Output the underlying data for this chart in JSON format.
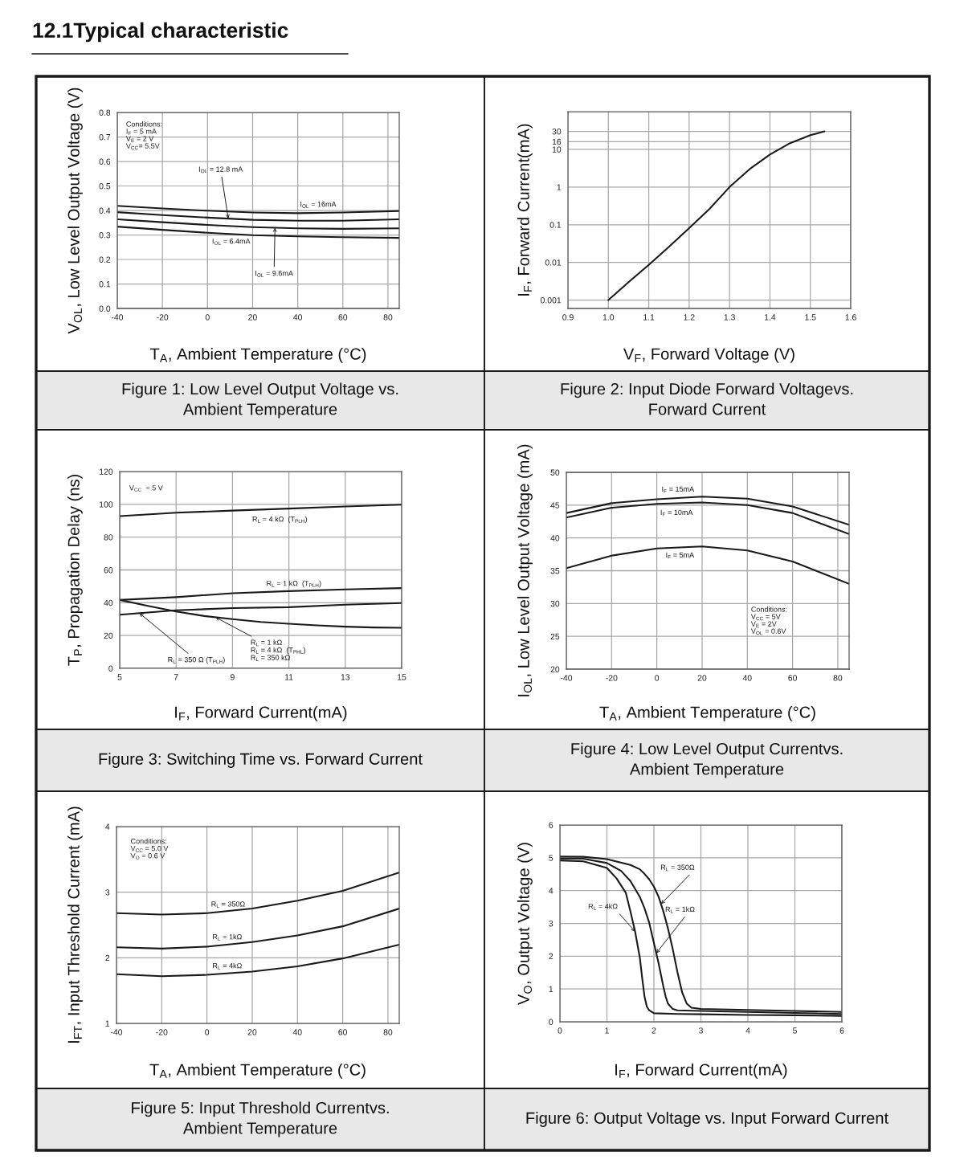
{
  "chart_data": [
    {
      "type": "other",
      "title": "12.1Typical characteristic"
    },
    {
      "type": "line",
      "title": "Figure 1: Low Level Output Voltage vs.\nAmbient Temperature",
      "xlabel": "T$_{A}$, Ambient Temperature (°C)",
      "ylabel": "V$_{OL}$, Low Level Output Voltage (V)",
      "xlim": [
        -40,
        85
      ],
      "ylim": [
        0,
        0.8
      ],
      "xticks": [
        -40,
        -20,
        0,
        20,
        40,
        60,
        80
      ],
      "yticks": [
        {
          "value": 0,
          "label": "0.0"
        },
        0.1,
        0.2,
        0.3,
        0.4,
        0.5,
        0.6,
        0.7,
        0.8
      ],
      "grid": true,
      "annotations": [
        "Conditions:\nI$_{F}$ = 5 mA\nV$_{E}$ = 2 V\nV$_{CC}$= 5.5V"
      ],
      "series": [
        {
          "name": "I$_{OL}$ = 16mA",
          "color": "#1a1a1a",
          "x": [
            -40,
            -20,
            0,
            20,
            40,
            60,
            85
          ],
          "values": [
            0.419,
            0.408,
            0.399,
            0.392,
            0.389,
            0.392,
            0.398
          ]
        },
        {
          "name": "I$_{OL}$ = 12.8 mA",
          "color": "#1a1a1a",
          "x": [
            -40,
            -20,
            0,
            20,
            40,
            60,
            85
          ],
          "values": [
            0.393,
            0.381,
            0.371,
            0.362,
            0.358,
            0.358,
            0.364
          ]
        },
        {
          "name": "I$_{OL}$ = 9.6mA",
          "color": "#1a1a1a",
          "x": [
            -40,
            -20,
            0,
            20,
            40,
            60,
            85
          ],
          "values": [
            0.364,
            0.352,
            0.341,
            0.332,
            0.327,
            0.325,
            0.327
          ]
        },
        {
          "name": "I$_{OL}$ = 6.4mA",
          "color": "#1a1a1a",
          "x": [
            -40,
            -20,
            0,
            20,
            40,
            60,
            85
          ],
          "values": [
            0.334,
            0.321,
            0.309,
            0.299,
            0.294,
            0.291,
            0.288
          ]
        }
      ]
    },
    {
      "type": "line",
      "title": "Figure 2: Input Diode Forward Voltagevs.\nForward Current",
      "xlabel": "V$_{F}$, Forward Voltage (V)",
      "ylabel": "I$_{F}$, Forward Current(mA)",
      "log": "y",
      "xlim": [
        0.9,
        1.6
      ],
      "ylim": [
        0.0006,
        100
      ],
      "xticks": [
        0.9,
        {
          "value": 1,
          "label": "1.0"
        },
        1.1,
        1.2,
        1.3,
        1.4,
        1.5,
        1.6
      ],
      "yticks": [
        0.001,
        0.01,
        0.1,
        1,
        10,
        16,
        30
      ],
      "grid": true,
      "series": [
        {
          "color": "#1a1a1a",
          "x": [
            1.0,
            1.05,
            1.1,
            1.15,
            1.2,
            1.25,
            1.3,
            1.35,
            1.4,
            1.45,
            1.5,
            1.535
          ],
          "values": [
            0.001,
            0.003,
            0.0086,
            0.026,
            0.081,
            0.26,
            1.0,
            3.0,
            7.3,
            14.6,
            23.7,
            30
          ]
        }
      ]
    },
    {
      "type": "line",
      "title": "Figure 3: Switching Time vs. Forward Current",
      "xlabel": "I$_{F}$, Forward Current(mA)",
      "ylabel": "T$_{P}$, Propagation Delay (ns)",
      "xlim": [
        5,
        15
      ],
      "ylim": [
        0,
        120
      ],
      "xticks": [
        5,
        7,
        9,
        11,
        13,
        15
      ],
      "yticks": [
        0,
        20,
        40,
        60,
        80,
        100,
        120
      ],
      "grid": true,
      "annotations": [
        "V$_{CC}$  = 5 V"
      ],
      "series": [
        {
          "name": "R$_{L}$ = 4 kΩ  (T$_{PLH}$)",
          "color": "#1a1a1a",
          "x": [
            5,
            7,
            9,
            11,
            13,
            15
          ],
          "values": [
            92.8,
            94.9,
            96.2,
            97.4,
            98.7,
            99.8
          ]
        },
        {
          "name": "R$_{L}$ = 1 kΩ  (T$_{PLH}$)",
          "color": "#1a1a1a",
          "x": [
            5,
            7,
            9,
            11,
            13,
            15
          ],
          "values": [
            41.7,
            43.4,
            45.8,
            47.1,
            48.1,
            48.9
          ]
        },
        {
          "name": "R$_{L}$ = 350 Ω (T$_{PLH}$)",
          "color": "#1a1a1a",
          "x": [
            5,
            7,
            9,
            11,
            13,
            15
          ],
          "values": [
            32.7,
            35.4,
            36.7,
            37.3,
            38.8,
            39.8
          ]
        },
        {
          "name": "R$_{L}$ = 1 kΩ\nR$_{L}$ = 4 kΩ  (T$_{PHL}$)\nR$_{L}$ = 350 kΩ",
          "color": "#1a1a1a",
          "x": [
            5,
            6,
            7,
            8,
            9,
            10,
            11,
            12,
            13,
            14,
            15
          ],
          "values": [
            41.7,
            38.1,
            34.7,
            31.9,
            30.0,
            28.3,
            27.2,
            26.2,
            25.4,
            24.9,
            24.7
          ]
        }
      ]
    },
    {
      "type": "line",
      "title": "Figure 4: Low Level Output Currentvs.\nAmbient Temperature",
      "xlabel": "T$_{A}$, Ambient Temperature (°C)",
      "ylabel": "I$_{OL}$, Low Level Output Voltage (mA)",
      "xlim": [
        -40,
        85
      ],
      "ylim": [
        20,
        50
      ],
      "xticks": [
        -40,
        -20,
        0,
        20,
        40,
        60,
        80
      ],
      "yticks": [
        20,
        25,
        30,
        35,
        40,
        45,
        50
      ],
      "grid": true,
      "annotations": [
        "Conditions:\nV$_{CC}$ = 5V\nV$_{E}$ = 2V\nV$_{OL}$ = 0.6V"
      ],
      "series": [
        {
          "name": "I$_{F}$ = 15mA",
          "color": "#1a1a1a",
          "x": [
            -40,
            -20,
            0,
            20,
            40,
            60,
            85
          ],
          "values": [
            43.8,
            45.3,
            45.9,
            46.3,
            46.0,
            44.8,
            42.0
          ]
        },
        {
          "name": "I$_{F}$ = 10mA",
          "color": "#1a1a1a",
          "x": [
            -40,
            -20,
            0,
            20,
            40,
            60,
            85
          ],
          "values": [
            43.1,
            44.6,
            45.2,
            45.4,
            45.0,
            43.8,
            40.6
          ]
        },
        {
          "name": "I$_{F}$ = 5mA",
          "color": "#1a1a1a",
          "x": [
            -40,
            -20,
            0,
            20,
            40,
            60,
            85
          ],
          "values": [
            35.4,
            37.3,
            38.4,
            38.7,
            38.1,
            36.4,
            33.0
          ]
        }
      ]
    },
    {
      "type": "line",
      "title": "Figure 5: Input Threshold Currentvs.\nAmbient Temperature",
      "xlabel": "T$_{A}$, Ambient Temperature (°C)",
      "ylabel": "I$_{FT}$, Input Threshold Current (mA)",
      "xlim": [
        -40,
        85
      ],
      "ylim": [
        1,
        4
      ],
      "xticks": [
        -40,
        -20,
        0,
        20,
        40,
        60,
        80
      ],
      "yticks": [
        1,
        2,
        3,
        4
      ],
      "grid": true,
      "annotations": [
        "Conditions:\nV$_{CC}$ = 5.0 V\nV$_{O}$ = 0.6 V"
      ],
      "series": [
        {
          "name": "R$_{L}$ = 350Ω",
          "color": "#1a1a1a",
          "x": [
            -40,
            -20,
            0,
            20,
            40,
            60,
            85
          ],
          "values": [
            2.68,
            2.66,
            2.68,
            2.75,
            2.87,
            3.02,
            3.3
          ]
        },
        {
          "name": "R$_{L}$ = 1kΩ",
          "color": "#1a1a1a",
          "x": [
            -40,
            -20,
            0,
            20,
            40,
            60,
            85
          ],
          "values": [
            2.16,
            2.14,
            2.17,
            2.24,
            2.34,
            2.48,
            2.75
          ]
        },
        {
          "name": "R$_{L}$ = 4kΩ",
          "color": "#1a1a1a",
          "x": [
            -40,
            -20,
            0,
            20,
            40,
            60,
            85
          ],
          "values": [
            1.75,
            1.72,
            1.74,
            1.79,
            1.87,
            1.99,
            2.2
          ]
        }
      ]
    },
    {
      "type": "line",
      "title": "Figure 6: Output Voltage vs. Input Forward Current",
      "xlabel": "I$_{F}$, Forward Current(mA)",
      "ylabel": "V$_{O}$, Output Voltage (V)",
      "xlim": [
        0,
        6
      ],
      "ylim": [
        0,
        6
      ],
      "xticks": [
        0,
        1,
        2,
        3,
        4,
        5,
        6
      ],
      "yticks": [
        0,
        1,
        2,
        3,
        4,
        5,
        6
      ],
      "grid": true,
      "series": [
        {
          "name": "R$_{L}$ = 4kΩ",
          "color": "#1a1a1a",
          "x": [
            0,
            0.5,
            1.0,
            1.2,
            1.4,
            1.5,
            1.6,
            1.7,
            1.75,
            1.8,
            1.85,
            1.9,
            2.0,
            2.5,
            3,
            4,
            5,
            6
          ],
          "values": [
            4.92,
            4.89,
            4.69,
            4.38,
            3.94,
            3.37,
            2.75,
            1.96,
            1.34,
            0.77,
            0.46,
            0.35,
            0.26,
            0.24,
            0.23,
            0.21,
            0.2,
            0.18
          ]
        },
        {
          "name": "R$_{L}$ = 1kΩ",
          "color": "#1a1a1a",
          "x": [
            0,
            0.5,
            1.0,
            1.3,
            1.5,
            1.7,
            1.8,
            1.9,
            2.0,
            2.1,
            2.2,
            2.25,
            2.3,
            2.4,
            2.5,
            3,
            4,
            5,
            6
          ],
          "values": [
            4.98,
            4.97,
            4.84,
            4.6,
            4.29,
            3.81,
            3.46,
            3.02,
            2.4,
            1.78,
            1.08,
            0.77,
            0.55,
            0.39,
            0.35,
            0.33,
            0.3,
            0.27,
            0.24
          ]
        },
        {
          "name": "R$_{L}$ = 350Ω",
          "color": "#1a1a1a",
          "x": [
            0,
            0.5,
            1.0,
            1.5,
            1.7,
            1.8,
            1.9,
            2.0,
            2.1,
            2.2,
            2.3,
            2.4,
            2.5,
            2.6,
            2.7,
            2.8,
            3,
            4,
            5,
            6
          ],
          "values": [
            5.04,
            5.03,
            4.96,
            4.78,
            4.65,
            4.51,
            4.34,
            4.12,
            3.81,
            3.37,
            2.84,
            2.22,
            1.52,
            0.9,
            0.55,
            0.43,
            0.39,
            0.36,
            0.33,
            0.3
          ]
        }
      ]
    }
  ]
}
